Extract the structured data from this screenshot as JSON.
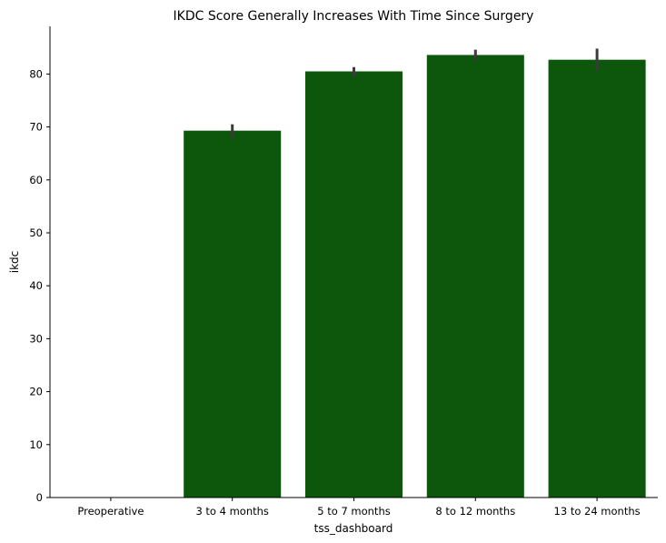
{
  "chart_data": {
    "type": "bar",
    "title": "IKDC Score Generally Increases With Time Since Surgery",
    "xlabel": "tss_dashboard",
    "ylabel": "ikdc",
    "categories": [
      "Preoperative",
      "3 to 4 months",
      "5 to 7 months",
      "8 to 12 months",
      "13 to 24 months"
    ],
    "values": [
      0,
      69.3,
      80.5,
      83.6,
      82.7
    ],
    "error_low": [
      null,
      67.9,
      79.5,
      82.6,
      80.6
    ],
    "error_high": [
      null,
      70.5,
      81.3,
      84.6,
      84.8
    ],
    "ylim": [
      0,
      89
    ],
    "yticks": [
      0,
      10,
      20,
      30,
      40,
      50,
      60,
      70,
      80
    ],
    "bar_color": "#0d570d",
    "error_color": "#3b3b3b",
    "grid": false,
    "legend": "none"
  }
}
